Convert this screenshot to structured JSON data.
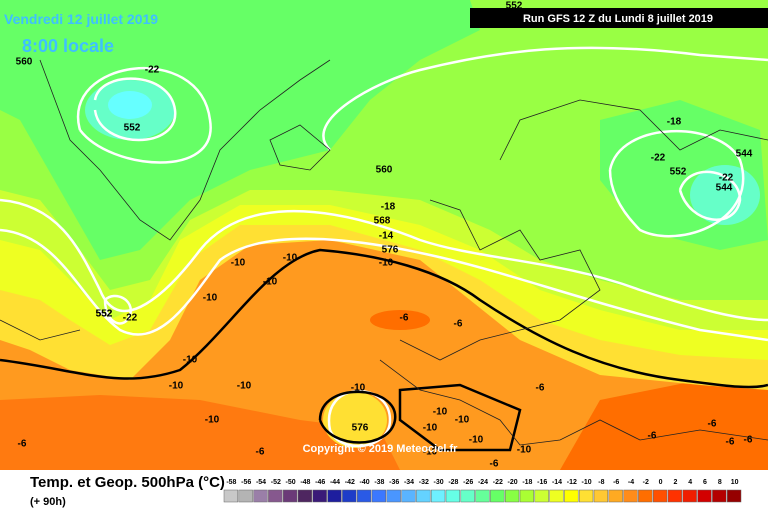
{
  "header": {
    "date": "Vendredi 12 juillet 2019",
    "time": "8:00 locale",
    "run": "Run GFS 12 Z du Lundi 8 juillet 2019"
  },
  "copyright": "Copyright © 2019 Meteociel.fr",
  "footer": {
    "title": "Temp. et Geop. 500hPa (°C)",
    "lead": "(+ 90h)"
  },
  "contour_labels": [
    "560",
    "-22",
    "552",
    "552",
    "560",
    "-18",
    "568",
    "-14",
    "576",
    "-10",
    "-10",
    "-10",
    "-10",
    "-10",
    "552",
    "-22",
    "-10",
    "-10",
    "-10",
    "-10",
    "-10",
    "-6",
    "-6",
    "-10",
    "576",
    "-10",
    "-10",
    "-10",
    "-10",
    "-10",
    "-6",
    "-6",
    "-6",
    "-6",
    "-6",
    "-6",
    "-18",
    "-22",
    "552",
    "-22",
    "544",
    "544",
    "552",
    "-6",
    "-6"
  ],
  "colorbar": {
    "labels": [
      -58,
      -56,
      -54,
      -52,
      -50,
      -48,
      -46,
      -44,
      -42,
      -40,
      -38,
      -36,
      -34,
      -32,
      -30,
      -28,
      -26,
      -24,
      -22,
      -20,
      -18,
      -16,
      -14,
      -12,
      -10,
      -8,
      -6,
      -4,
      -2,
      0,
      2,
      4,
      6,
      8,
      10
    ],
    "colors": [
      "#c8c8c8",
      "#b4b4b4",
      "#9a7fa8",
      "#86588e",
      "#6b3a78",
      "#4e2660",
      "#3a1a78",
      "#1e1e9e",
      "#1e3cc8",
      "#2a5ae6",
      "#3c78ff",
      "#4a96ff",
      "#5ab4ff",
      "#64d2ff",
      "#6ef0ff",
      "#66ffe6",
      "#66ffc8",
      "#66ff9a",
      "#66ff66",
      "#88ff44",
      "#aaff33",
      "#ccff33",
      "#eeff22",
      "#ffff00",
      "#ffe033",
      "#ffc833",
      "#ffaa22",
      "#ff8c1a",
      "#ff6e00",
      "#ff5000",
      "#ff3200",
      "#f01e00",
      "#d20000",
      "#b40000",
      "#960000"
    ]
  }
}
